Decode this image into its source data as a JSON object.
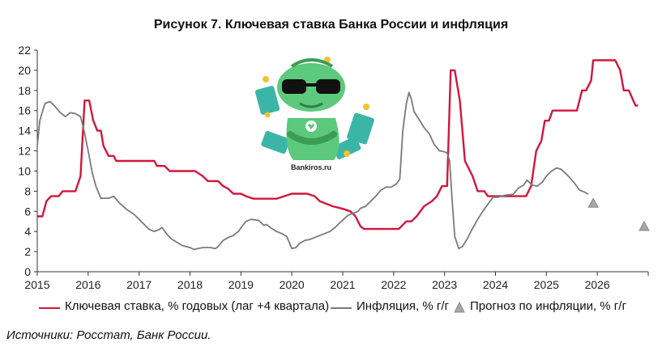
{
  "chart_data": {
    "type": "line",
    "title": "Рисунок 7. Ключевая ставка Банка России и инфляция",
    "xlabel": "",
    "ylabel": "",
    "xlim": [
      2015,
      2027
    ],
    "ylim": [
      0,
      22
    ],
    "yticks": [
      0,
      2,
      4,
      6,
      8,
      10,
      12,
      14,
      16,
      18,
      20,
      22
    ],
    "xticks": [
      "2015",
      "2016",
      "2017",
      "2018",
      "2019",
      "2020",
      "2021",
      "2022",
      "2023",
      "2024",
      "2025",
      "2026"
    ],
    "grid": false,
    "legend_position": "bottom",
    "series": [
      {
        "name": "Ключевая ставка, % годовых (лаг +4 квартала)",
        "color": "#d0173c",
        "points": [
          [
            2015.0,
            5.5
          ],
          [
            2015.1,
            5.5
          ],
          [
            2015.18,
            7.0
          ],
          [
            2015.27,
            7.5
          ],
          [
            2015.42,
            7.5
          ],
          [
            2015.5,
            8.0
          ],
          [
            2015.75,
            8.0
          ],
          [
            2015.85,
            9.5
          ],
          [
            2015.93,
            17.0
          ],
          [
            2016.02,
            17.0
          ],
          [
            2016.1,
            15.0
          ],
          [
            2016.18,
            14.0
          ],
          [
            2016.25,
            14.0
          ],
          [
            2016.3,
            12.5
          ],
          [
            2016.4,
            11.5
          ],
          [
            2016.5,
            11.5
          ],
          [
            2016.55,
            11.0
          ],
          [
            2017.3,
            11.0
          ],
          [
            2017.35,
            10.5
          ],
          [
            2017.5,
            10.5
          ],
          [
            2017.6,
            10.0
          ],
          [
            2018.1,
            10.0
          ],
          [
            2018.25,
            9.5
          ],
          [
            2018.35,
            9.0
          ],
          [
            2018.55,
            9.0
          ],
          [
            2018.65,
            8.5
          ],
          [
            2018.75,
            8.25
          ],
          [
            2018.85,
            7.75
          ],
          [
            2019.0,
            7.75
          ],
          [
            2019.1,
            7.5
          ],
          [
            2019.25,
            7.25
          ],
          [
            2019.7,
            7.25
          ],
          [
            2019.85,
            7.5
          ],
          [
            2020.0,
            7.75
          ],
          [
            2020.3,
            7.75
          ],
          [
            2020.45,
            7.5
          ],
          [
            2020.55,
            7.0
          ],
          [
            2020.8,
            6.5
          ],
          [
            2021.0,
            6.25
          ],
          [
            2021.15,
            6.0
          ],
          [
            2021.25,
            5.5
          ],
          [
            2021.35,
            4.5
          ],
          [
            2021.42,
            4.25
          ],
          [
            2022.1,
            4.25
          ],
          [
            2022.25,
            5.0
          ],
          [
            2022.35,
            5.0
          ],
          [
            2022.45,
            5.5
          ],
          [
            2022.6,
            6.5
          ],
          [
            2022.75,
            7.0
          ],
          [
            2022.85,
            7.5
          ],
          [
            2022.95,
            8.5
          ],
          [
            2023.05,
            8.5
          ],
          [
            2023.12,
            20.0
          ],
          [
            2023.2,
            20.0
          ],
          [
            2023.3,
            17.0
          ],
          [
            2023.4,
            11.0
          ],
          [
            2023.55,
            9.5
          ],
          [
            2023.65,
            8.0
          ],
          [
            2023.78,
            8.0
          ],
          [
            2023.85,
            7.5
          ],
          [
            2024.6,
            7.5
          ],
          [
            2024.7,
            8.5
          ],
          [
            2024.8,
            12.0
          ],
          [
            2024.9,
            13.0
          ],
          [
            2024.97,
            15.0
          ],
          [
            2025.05,
            15.0
          ],
          [
            2025.12,
            16.0
          ],
          [
            2025.6,
            16.0
          ],
          [
            2025.7,
            18.0
          ],
          [
            2025.78,
            18.0
          ],
          [
            2025.88,
            19.0
          ],
          [
            2025.92,
            21.0
          ],
          [
            2026.35,
            21.0
          ],
          [
            2026.45,
            20.0
          ],
          [
            2026.52,
            18.0
          ],
          [
            2026.62,
            18.0
          ],
          [
            2026.75,
            16.5
          ],
          [
            2026.8,
            16.5
          ]
        ]
      },
      {
        "name": "Инфляция, % г/г",
        "color": "#7a7a7a",
        "points": [
          [
            2015.0,
            12.5
          ],
          [
            2015.05,
            15.0
          ],
          [
            2015.15,
            16.7
          ],
          [
            2015.25,
            16.9
          ],
          [
            2015.35,
            16.4
          ],
          [
            2015.45,
            15.8
          ],
          [
            2015.55,
            15.4
          ],
          [
            2015.65,
            15.8
          ],
          [
            2015.75,
            15.7
          ],
          [
            2015.85,
            15.4
          ],
          [
            2015.92,
            14.0
          ],
          [
            2016.0,
            12.0
          ],
          [
            2016.08,
            9.8
          ],
          [
            2016.15,
            8.5
          ],
          [
            2016.25,
            7.3
          ],
          [
            2016.4,
            7.3
          ],
          [
            2016.5,
            7.5
          ],
          [
            2016.6,
            6.9
          ],
          [
            2016.75,
            6.2
          ],
          [
            2016.9,
            5.7
          ],
          [
            2017.0,
            5.2
          ],
          [
            2017.1,
            4.7
          ],
          [
            2017.2,
            4.2
          ],
          [
            2017.3,
            4.0
          ],
          [
            2017.4,
            4.2
          ],
          [
            2017.45,
            4.4
          ],
          [
            2017.55,
            3.7
          ],
          [
            2017.65,
            3.2
          ],
          [
            2017.75,
            2.9
          ],
          [
            2017.85,
            2.6
          ],
          [
            2018.0,
            2.4
          ],
          [
            2018.08,
            2.2
          ],
          [
            2018.15,
            2.3
          ],
          [
            2018.25,
            2.4
          ],
          [
            2018.4,
            2.4
          ],
          [
            2018.5,
            2.3
          ],
          [
            2018.55,
            2.5
          ],
          [
            2018.65,
            3.1
          ],
          [
            2018.75,
            3.4
          ],
          [
            2018.85,
            3.6
          ],
          [
            2018.95,
            4.0
          ],
          [
            2019.05,
            4.7
          ],
          [
            2019.1,
            5.0
          ],
          [
            2019.2,
            5.2
          ],
          [
            2019.35,
            5.1
          ],
          [
            2019.45,
            4.6
          ],
          [
            2019.5,
            4.7
          ],
          [
            2019.6,
            4.3
          ],
          [
            2019.7,
            4.0
          ],
          [
            2019.8,
            3.8
          ],
          [
            2019.9,
            3.5
          ],
          [
            2020.0,
            2.3
          ],
          [
            2020.08,
            2.4
          ],
          [
            2020.15,
            2.8
          ],
          [
            2020.25,
            3.1
          ],
          [
            2020.35,
            3.2
          ],
          [
            2020.45,
            3.4
          ],
          [
            2020.55,
            3.6
          ],
          [
            2020.65,
            3.8
          ],
          [
            2020.75,
            4.0
          ],
          [
            2020.85,
            4.4
          ],
          [
            2020.95,
            4.9
          ],
          [
            2021.1,
            5.6
          ],
          [
            2021.2,
            5.8
          ],
          [
            2021.3,
            6.0
          ],
          [
            2021.35,
            6.3
          ],
          [
            2021.45,
            6.5
          ],
          [
            2021.55,
            7.0
          ],
          [
            2021.65,
            7.5
          ],
          [
            2021.75,
            8.1
          ],
          [
            2021.85,
            8.4
          ],
          [
            2021.95,
            8.4
          ],
          [
            2022.05,
            8.7
          ],
          [
            2022.12,
            9.2
          ],
          [
            2022.18,
            14.0
          ],
          [
            2022.25,
            16.7
          ],
          [
            2022.3,
            17.8
          ],
          [
            2022.35,
            17.1
          ],
          [
            2022.4,
            15.9
          ],
          [
            2022.5,
            15.1
          ],
          [
            2022.6,
            14.3
          ],
          [
            2022.7,
            13.7
          ],
          [
            2022.8,
            12.6
          ],
          [
            2022.9,
            12.0
          ],
          [
            2023.0,
            11.9
          ],
          [
            2023.05,
            11.8
          ],
          [
            2023.1,
            11.0
          ],
          [
            2023.15,
            7.0
          ],
          [
            2023.2,
            3.5
          ],
          [
            2023.28,
            2.3
          ],
          [
            2023.35,
            2.5
          ],
          [
            2023.45,
            3.3
          ],
          [
            2023.55,
            4.3
          ],
          [
            2023.65,
            5.2
          ],
          [
            2023.75,
            6.0
          ],
          [
            2023.85,
            6.7
          ],
          [
            2023.95,
            7.4
          ],
          [
            2024.05,
            7.4
          ],
          [
            2024.2,
            7.6
          ],
          [
            2024.35,
            7.7
          ],
          [
            2024.45,
            8.3
          ],
          [
            2024.55,
            8.6
          ],
          [
            2024.62,
            9.1
          ],
          [
            2024.72,
            8.6
          ],
          [
            2024.82,
            8.5
          ],
          [
            2024.92,
            8.9
          ],
          [
            2025.0,
            9.5
          ],
          [
            2025.1,
            10.0
          ],
          [
            2025.2,
            10.3
          ],
          [
            2025.28,
            10.2
          ],
          [
            2025.35,
            9.9
          ],
          [
            2025.45,
            9.4
          ],
          [
            2025.55,
            8.8
          ],
          [
            2025.65,
            8.1
          ],
          [
            2025.75,
            7.9
          ],
          [
            2025.82,
            7.7
          ]
        ]
      }
    ],
    "forecast": {
      "name": "Прогноз по инфляции, % г/г",
      "color": "#a6a6a6",
      "points": [
        [
          2025.92,
          6.8
        ],
        [
          2026.92,
          4.5
        ]
      ]
    }
  },
  "source_note": "Источники: Росстат, Банк России.",
  "mascot": {
    "caption": "Bankiros.ru",
    "colors": {
      "body": "#5cc97c",
      "dark": "#3a9c56",
      "money": "#3bb6a6",
      "coin": "#f2c230"
    }
  }
}
